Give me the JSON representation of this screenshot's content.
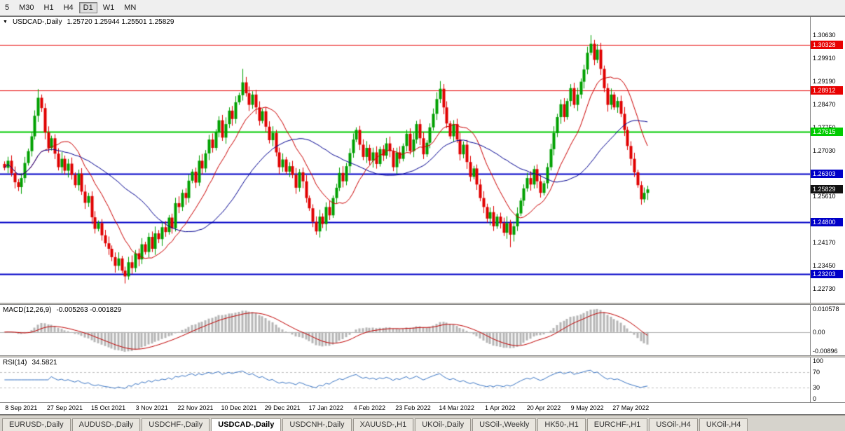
{
  "toolbar": {
    "periods": [
      {
        "label": "5",
        "active": false
      },
      {
        "label": "M30",
        "active": false
      },
      {
        "label": "H1",
        "active": false
      },
      {
        "label": "H4",
        "active": false
      },
      {
        "label": "D1",
        "active": true
      },
      {
        "label": "W1",
        "active": false
      },
      {
        "label": "MN",
        "active": false
      }
    ]
  },
  "chart_header": {
    "collapse_icon": "▼",
    "symbol": "USDCAD-,Daily",
    "ohlc": "1.25720 1.25944 1.25501 1.25829"
  },
  "price_axis": {
    "ticks": [
      "1.30630",
      "1.29910",
      "1.29190",
      "1.28470",
      "1.27750",
      "1.27030",
      "1.25610",
      "1.24170",
      "1.23450",
      "1.22730"
    ]
  },
  "colors": {
    "up": "#00a000",
    "down": "#e00000",
    "ma_fast": "#cc0000",
    "ma_slow": "#000090",
    "macd_hist": "#b6b6b6",
    "macd_signal": "#c00000",
    "rsi_line": "#3a75c4",
    "dashed_level": "#c0c0c0",
    "level_red": "#e80000",
    "level_green": "#00cc00",
    "level_blue": "#0000c8",
    "current_badge": "#111111"
  },
  "chart_data": {
    "type": "candlestick",
    "symbol": "USDCAD",
    "timeframe": "Daily",
    "ohlc_current": {
      "open": 1.2572,
      "high": 1.25944,
      "low": 1.25501,
      "close": 1.25829
    },
    "ylim": [
      1.223,
      1.312
    ],
    "levels": [
      {
        "price": 1.30328,
        "label": "1.30328",
        "color": "#e80000",
        "width": 1
      },
      {
        "price": 1.28912,
        "label": "1.28912",
        "color": "#e80000",
        "width": 1
      },
      {
        "price": 1.27615,
        "label": "1.27615",
        "color": "#00cc00",
        "width": 2
      },
      {
        "price": 1.26303,
        "label": "1.26303",
        "color": "#0000c8",
        "width": 2
      },
      {
        "price": 1.248,
        "label": "1.24800",
        "color": "#0000c8",
        "width": 2
      },
      {
        "price": 1.23203,
        "label": "1.23203",
        "color": "#0000c8",
        "width": 2
      }
    ],
    "current_price": {
      "value": 1.25829,
      "label": "1.25829"
    },
    "closes": [
      1.265,
      1.2672,
      1.2633,
      1.2605,
      1.259,
      1.2618,
      1.2665,
      1.2702,
      1.2748,
      1.2812,
      1.2868,
      1.2836,
      1.276,
      1.2712,
      1.2742,
      1.2694,
      1.2652,
      1.2678,
      1.2641,
      1.2663,
      1.2628,
      1.2596,
      1.2632,
      1.2576,
      1.2541,
      1.2562,
      1.2496,
      1.246,
      1.2478,
      1.244,
      1.2415,
      1.2398,
      1.2372,
      1.2345,
      1.2368,
      1.233,
      1.2312,
      1.2356,
      1.2338,
      1.2384,
      1.2365,
      1.2412,
      1.2388,
      1.2435,
      1.2398,
      1.2446,
      1.2428,
      1.2465,
      1.245,
      1.2495,
      1.2462,
      1.254,
      1.2528,
      1.2572,
      1.2556,
      1.261,
      1.2638,
      1.2604,
      1.2672,
      1.2648,
      1.2695,
      1.2738,
      1.2712,
      1.2762,
      1.2798,
      1.2744,
      1.2786,
      1.2828,
      1.2802,
      1.2854,
      1.2876,
      1.2916,
      1.2882,
      1.2846,
      1.2878,
      1.2838,
      1.2796,
      1.2826,
      1.2778,
      1.2736,
      1.2758,
      1.2698,
      1.2652,
      1.2676,
      1.2638,
      1.2655,
      1.2628,
      1.2588,
      1.2636,
      1.2608,
      1.2556,
      1.2524,
      1.2482,
      1.2452,
      1.2498,
      1.2475,
      1.2528,
      1.2502,
      1.2556,
      1.2588,
      1.2634,
      1.2608,
      1.2655,
      1.2696,
      1.2738,
      1.2768,
      1.2722,
      1.2684,
      1.2712,
      1.2672,
      1.2698,
      1.2662,
      1.2708,
      1.2688,
      1.2726,
      1.2702,
      1.2652,
      1.2698,
      1.2678,
      1.2718,
      1.2756,
      1.2702,
      1.2738,
      1.2786,
      1.2742,
      1.2692,
      1.2728,
      1.2776,
      1.2818,
      1.2864,
      1.2896,
      1.2838,
      1.2788,
      1.2748,
      1.2786,
      1.2738,
      1.2692,
      1.2722,
      1.2668,
      1.2622,
      1.2648,
      1.2598,
      1.2556,
      1.2528,
      1.2492,
      1.2512,
      1.2468,
      1.2498,
      1.2478,
      1.2448,
      1.2478,
      1.2442,
      1.2468,
      1.2508,
      1.2548,
      1.2586,
      1.2618,
      1.2598,
      1.2646,
      1.2608,
      1.2572,
      1.2602,
      1.2652,
      1.2708,
      1.2758,
      1.2808,
      1.2848,
      1.2808,
      1.2858,
      1.2898,
      1.2846,
      1.2878,
      1.2918,
      1.2956,
      1.3008,
      1.3036,
      1.2986,
      1.3018,
      1.2958,
      1.2898,
      1.2846,
      1.2878,
      1.2838,
      1.2858,
      1.2818,
      1.2768,
      1.2718,
      1.2678,
      1.2636,
      1.2596,
      1.2552,
      1.2572,
      1.25829
    ],
    "wick_overrides": {
      "10": {
        "h": 1.2895
      },
      "36": {
        "l": 1.229
      },
      "71": {
        "h": 1.2958
      },
      "130": {
        "h": 1.292
      },
      "151": {
        "l": 1.2403
      },
      "175": {
        "h": 1.3063
      }
    },
    "ma_fast_period": 13,
    "ma_slow_period": 34,
    "time_labels": [
      {
        "text": "8 Sep 2021",
        "i": 5
      },
      {
        "text": "27 Sep 2021",
        "i": 18
      },
      {
        "text": "15 Oct 2021",
        "i": 31
      },
      {
        "text": "3 Nov 2021",
        "i": 44
      },
      {
        "text": "22 Nov 2021",
        "i": 57
      },
      {
        "text": "10 Dec 2021",
        "i": 70
      },
      {
        "text": "29 Dec 2021",
        "i": 83
      },
      {
        "text": "17 Jan 2022",
        "i": 96
      },
      {
        "text": "4 Feb 2022",
        "i": 109
      },
      {
        "text": "23 Feb 2022",
        "i": 122
      },
      {
        "text": "14 Mar 2022",
        "i": 135
      },
      {
        "text": "1 Apr 2022",
        "i": 148
      },
      {
        "text": "20 Apr 2022",
        "i": 161
      },
      {
        "text": "9 May 2022",
        "i": 174
      },
      {
        "text": "27 May 2022",
        "i": 187
      }
    ]
  },
  "macd": {
    "label": "MACD(12,26,9)",
    "values": "-0.005263 -0.001829",
    "params": [
      12,
      26,
      9
    ],
    "axis": {
      "max": "0.010578",
      "zero": "0.00",
      "min": "-0.00896"
    }
  },
  "rsi": {
    "label": "RSI(14)",
    "value": "34.5821",
    "period": 14,
    "axis": [
      "100",
      "70",
      "30",
      "0"
    ],
    "levels": [
      70,
      30
    ]
  },
  "tabs": [
    {
      "label": "EURUSD-,Daily",
      "active": false
    },
    {
      "label": "AUDUSD-,Daily",
      "active": false
    },
    {
      "label": "USDCHF-,Daily",
      "active": false
    },
    {
      "label": "USDCAD-,Daily",
      "active": true
    },
    {
      "label": "USDCNH-,Daily",
      "active": false
    },
    {
      "label": "XAUUSD-,H1",
      "active": false
    },
    {
      "label": "UKOil-,Daily",
      "active": false
    },
    {
      "label": "USOil-,Weekly",
      "active": false
    },
    {
      "label": "HK50-,H1",
      "active": false
    },
    {
      "label": "EURCHF-,H1",
      "active": false
    },
    {
      "label": "USOil-,H4",
      "active": false
    },
    {
      "label": "UKOil-,H4",
      "active": false
    }
  ]
}
